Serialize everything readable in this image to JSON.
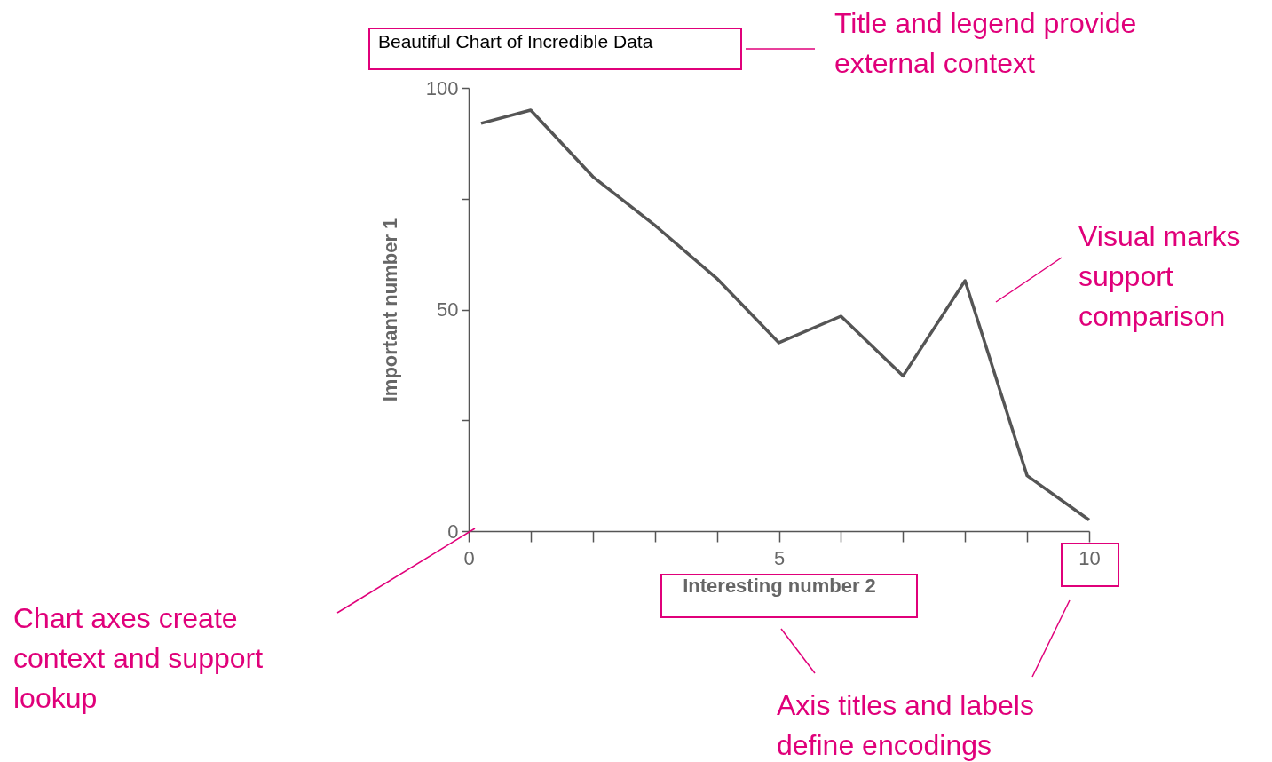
{
  "chart_data": {
    "type": "line",
    "title": "Beautiful Chart of Incredible Data",
    "xlabel": "Interesting number 2",
    "ylabel": "Important number 1",
    "x": [
      0.2,
      1,
      2,
      3,
      4,
      5,
      6,
      7,
      8,
      9,
      10
    ],
    "series": [
      {
        "color": "#555555",
        "values": [
          92,
          95,
          80,
          69,
          57,
          42.5,
          48.5,
          35,
          56.5,
          12.5,
          2.5
        ]
      }
    ],
    "xlim": [
      0,
      10
    ],
    "ylim": [
      0,
      100
    ],
    "xticks": [
      0,
      {
        "value": 1,
        "label": null
      },
      {
        "value": 2,
        "label": null
      },
      {
        "value": 3,
        "label": null
      },
      {
        "value": 4,
        "label": null
      },
      5,
      {
        "value": 6,
        "label": null
      },
      {
        "value": 7,
        "label": null
      },
      {
        "value": 8,
        "label": null
      },
      {
        "value": 9,
        "label": null
      },
      10
    ],
    "yticks": [
      0,
      {
        "value": 25,
        "label": null
      },
      50,
      {
        "value": 75,
        "label": null
      },
      100
    ],
    "grid": false,
    "legend": false,
    "marker": "none",
    "line_style": "solid",
    "annotations": [
      "Title and legend provide external context",
      "Visual marks support comparison",
      "Chart axes create context and support lookup",
      "Axis titles and labels define encodings"
    ]
  }
}
